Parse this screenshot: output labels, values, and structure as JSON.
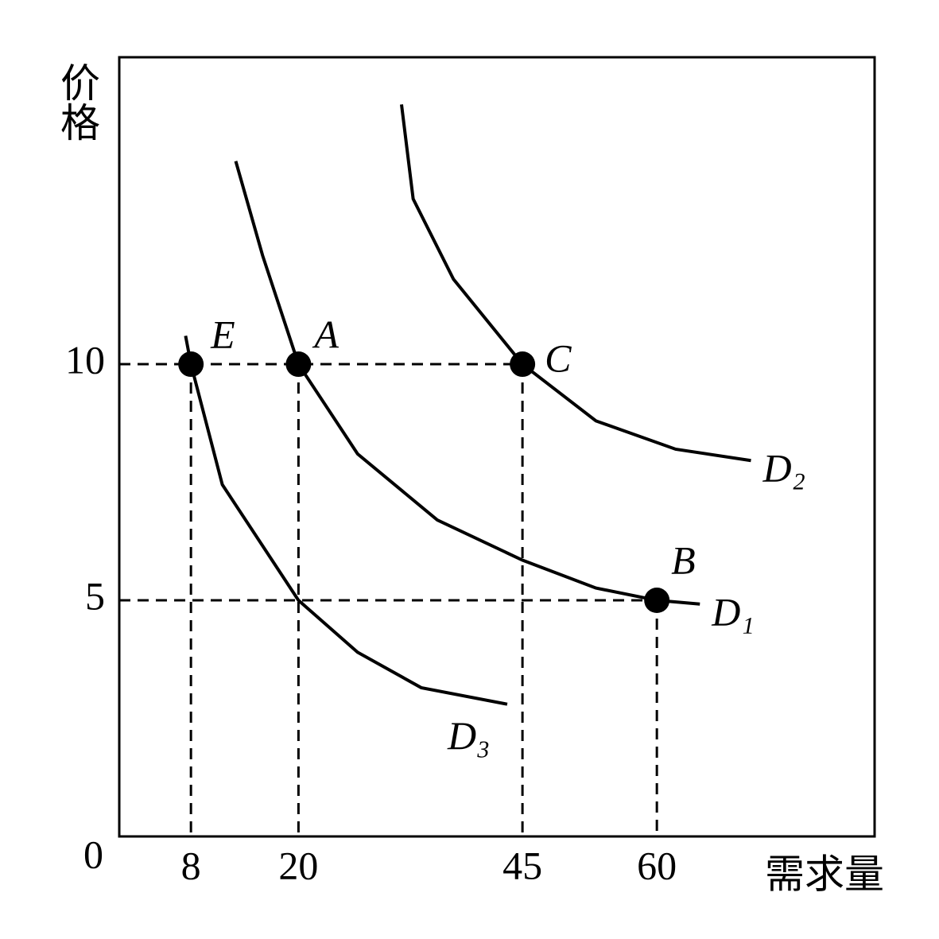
{
  "chart_data": {
    "type": "line",
    "x_label": "需求量",
    "y_label": "价格",
    "xlim": [
      0,
      84.3
    ],
    "ylim": [
      0,
      16.5
    ],
    "xticks": [
      8,
      20,
      45,
      60
    ],
    "yticks": [
      0,
      5,
      10
    ],
    "series": [
      {
        "name": "D₁",
        "color": "#000000",
        "x": [
          13.0,
          16.0,
          20,
          26.6,
          35.5,
          45,
          53.2,
          60,
          64.8
        ],
        "values": [
          14.3,
          12.3,
          10,
          8.1,
          6.7,
          5.85,
          5.26,
          5,
          4.92
        ]
      },
      {
        "name": "D₂",
        "color": "#000000",
        "x": [
          31.5,
          32.8,
          37.3,
          45,
          53.2,
          62.1,
          70.5
        ],
        "values": [
          15.5,
          13.5,
          11.8,
          10,
          8.8,
          8.2,
          7.96
        ]
      },
      {
        "name": "D₃",
        "color": "#000000",
        "x": [
          7.4,
          8,
          11.5,
          20,
          26.6,
          33.7,
          43.3
        ],
        "values": [
          10.6,
          10,
          7.45,
          5,
          3.9,
          3.15,
          2.8
        ]
      }
    ],
    "points": [
      {
        "label": "E",
        "x": 8,
        "y": 10
      },
      {
        "label": "A",
        "x": 20,
        "y": 10
      },
      {
        "label": "C",
        "x": 45,
        "y": 10
      },
      {
        "label": "B",
        "x": 60,
        "y": 5
      }
    ]
  }
}
